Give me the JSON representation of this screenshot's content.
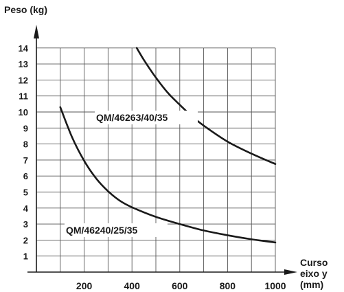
{
  "chart_data": {
    "type": "line",
    "ylabel": "Peso (kg)",
    "xlabel_lines": [
      "Curso",
      "eixo y",
      "(mm)"
    ],
    "x_ticks": [
      200,
      400,
      600,
      800,
      1000
    ],
    "y_ticks": [
      1,
      2,
      3,
      4,
      5,
      6,
      7,
      8,
      9,
      10,
      11,
      12,
      13,
      14
    ],
    "xlim": [
      0,
      1000
    ],
    "ylim": [
      0,
      15
    ],
    "grid": true,
    "series": [
      {
        "name": "QM/46240/25/35",
        "x": [
          100,
          150,
          200,
          250,
          300,
          350,
          400,
          500,
          600,
          700,
          800,
          900,
          1000
        ],
        "y": [
          10.3,
          8.4,
          6.95,
          5.85,
          5.05,
          4.45,
          4.05,
          3.45,
          3.0,
          2.6,
          2.3,
          2.05,
          1.85
        ]
      },
      {
        "name": "QM/46263/40/35",
        "x": [
          420,
          450,
          500,
          550,
          600,
          650,
          700,
          800,
          900,
          1000
        ],
        "y": [
          14.0,
          13.25,
          12.15,
          11.2,
          10.45,
          9.75,
          9.15,
          8.15,
          7.4,
          6.75
        ]
      }
    ]
  }
}
